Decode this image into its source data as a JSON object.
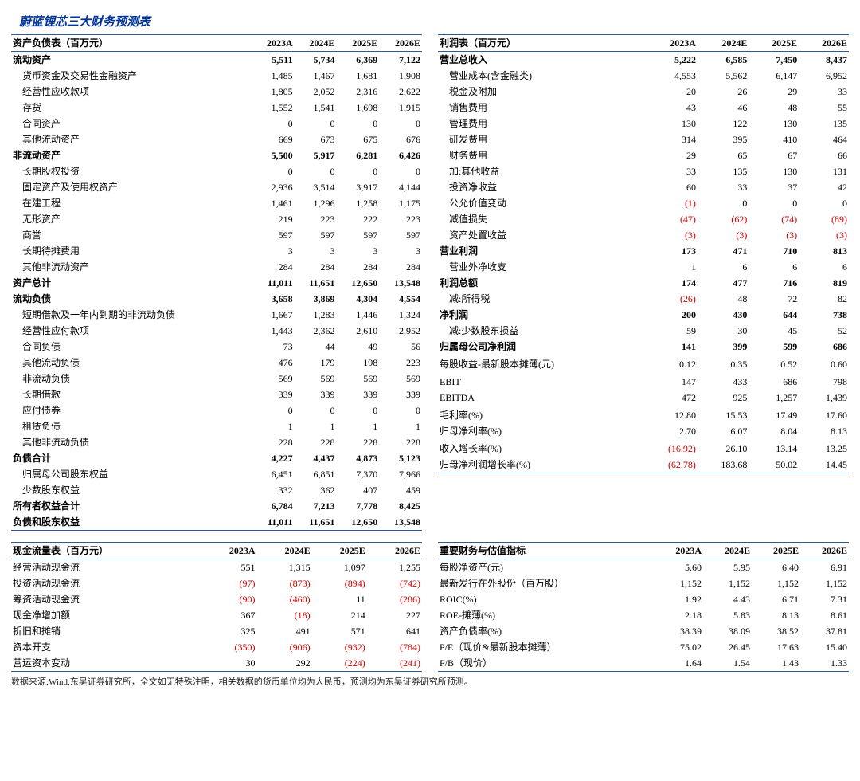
{
  "title": "蔚蓝锂芯三大财务预测表",
  "footnote": "数据来源:Wind,东吴证券研究所，全文如无特殊注明，相关数据的货币单位均为人民币，预测均为东吴证券研究所预测。",
  "periods": [
    "2023A",
    "2024E",
    "2025E",
    "2026E"
  ],
  "colors": {
    "title": "#003399",
    "rule": "#2a5a9a",
    "negative": "#d40000"
  },
  "balance_sheet": {
    "header": "资产负债表（百万元）",
    "rows": [
      {
        "label": "流动资产",
        "bold": true,
        "v": [
          "5,511",
          "5,734",
          "6,369",
          "7,122"
        ]
      },
      {
        "label": "货币资金及交易性金融资产",
        "indent": true,
        "v": [
          "1,485",
          "1,467",
          "1,681",
          "1,908"
        ]
      },
      {
        "label": "经营性应收款项",
        "indent": true,
        "v": [
          "1,805",
          "2,052",
          "2,316",
          "2,622"
        ]
      },
      {
        "label": "存货",
        "indent": true,
        "v": [
          "1,552",
          "1,541",
          "1,698",
          "1,915"
        ]
      },
      {
        "label": "合同资产",
        "indent": true,
        "v": [
          "0",
          "0",
          "0",
          "0"
        ]
      },
      {
        "label": "其他流动资产",
        "indent": true,
        "v": [
          "669",
          "673",
          "675",
          "676"
        ]
      },
      {
        "label": "非流动资产",
        "bold": true,
        "v": [
          "5,500",
          "5,917",
          "6,281",
          "6,426"
        ]
      },
      {
        "label": "长期股权投资",
        "indent": true,
        "v": [
          "0",
          "0",
          "0",
          "0"
        ]
      },
      {
        "label": "固定资产及使用权资产",
        "indent": true,
        "v": [
          "2,936",
          "3,514",
          "3,917",
          "4,144"
        ]
      },
      {
        "label": "在建工程",
        "indent": true,
        "v": [
          "1,461",
          "1,296",
          "1,258",
          "1,175"
        ]
      },
      {
        "label": "无形资产",
        "indent": true,
        "v": [
          "219",
          "223",
          "222",
          "223"
        ]
      },
      {
        "label": "商誉",
        "indent": true,
        "v": [
          "597",
          "597",
          "597",
          "597"
        ]
      },
      {
        "label": "长期待摊费用",
        "indent": true,
        "v": [
          "3",
          "3",
          "3",
          "3"
        ]
      },
      {
        "label": "其他非流动资产",
        "indent": true,
        "v": [
          "284",
          "284",
          "284",
          "284"
        ]
      },
      {
        "label": "资产总计",
        "bold": true,
        "v": [
          "11,011",
          "11,651",
          "12,650",
          "13,548"
        ]
      },
      {
        "label": "流动负债",
        "bold": true,
        "v": [
          "3,658",
          "3,869",
          "4,304",
          "4,554"
        ]
      },
      {
        "label": "短期借款及一年内到期的非流动负债",
        "indent": true,
        "v": [
          "1,667",
          "1,283",
          "1,446",
          "1,324"
        ]
      },
      {
        "label": "经营性应付款项",
        "indent": true,
        "v": [
          "1,443",
          "2,362",
          "2,610",
          "2,952"
        ]
      },
      {
        "label": "合同负债",
        "indent": true,
        "v": [
          "73",
          "44",
          "49",
          "56"
        ]
      },
      {
        "label": "其他流动负债",
        "indent": true,
        "v": [
          "476",
          "179",
          "198",
          "223"
        ]
      },
      {
        "label": "非流动负债",
        "indent": true,
        "v": [
          "569",
          "569",
          "569",
          "569"
        ]
      },
      {
        "label": "长期借款",
        "indent": true,
        "v": [
          "339",
          "339",
          "339",
          "339"
        ]
      },
      {
        "label": "应付债券",
        "indent": true,
        "v": [
          "0",
          "0",
          "0",
          "0"
        ]
      },
      {
        "label": "租赁负债",
        "indent": true,
        "v": [
          "1",
          "1",
          "1",
          "1"
        ]
      },
      {
        "label": "其他非流动负债",
        "indent": true,
        "v": [
          "228",
          "228",
          "228",
          "228"
        ]
      },
      {
        "label": "负债合计",
        "bold": true,
        "v": [
          "4,227",
          "4,437",
          "4,873",
          "5,123"
        ]
      },
      {
        "label": "归属母公司股东权益",
        "indent": true,
        "v": [
          "6,451",
          "6,851",
          "7,370",
          "7,966"
        ]
      },
      {
        "label": "少数股东权益",
        "indent": true,
        "v": [
          "332",
          "362",
          "407",
          "459"
        ]
      },
      {
        "label": "所有者权益合计",
        "bold": true,
        "v": [
          "6,784",
          "7,213",
          "7,778",
          "8,425"
        ]
      },
      {
        "label": "负债和股东权益",
        "bold": true,
        "v": [
          "11,011",
          "11,651",
          "12,650",
          "13,548"
        ],
        "last": true
      }
    ]
  },
  "income_statement": {
    "header": "利润表（百万元）",
    "rows": [
      {
        "label": "营业总收入",
        "bold": true,
        "v": [
          "5,222",
          "6,585",
          "7,450",
          "8,437"
        ]
      },
      {
        "label": "营业成本(含金融类)",
        "indent": true,
        "v": [
          "4,553",
          "5,562",
          "6,147",
          "6,952"
        ]
      },
      {
        "label": "税金及附加",
        "indent": true,
        "v": [
          "20",
          "26",
          "29",
          "33"
        ]
      },
      {
        "label": "销售费用",
        "indent": true,
        "v": [
          "43",
          "46",
          "48",
          "55"
        ]
      },
      {
        "label": "管理费用",
        "indent": true,
        "v": [
          "130",
          "122",
          "130",
          "135"
        ]
      },
      {
        "label": "研发费用",
        "indent": true,
        "v": [
          "314",
          "395",
          "410",
          "464"
        ]
      },
      {
        "label": "财务费用",
        "indent": true,
        "v": [
          "29",
          "65",
          "67",
          "66"
        ]
      },
      {
        "label": "加:其他收益",
        "indent": true,
        "v": [
          "33",
          "135",
          "130",
          "131"
        ]
      },
      {
        "label": "投资净收益",
        "indent": true,
        "v": [
          "60",
          "33",
          "37",
          "42"
        ]
      },
      {
        "label": "公允价值变动",
        "indent": true,
        "v": [
          "(1)",
          "0",
          "0",
          "0"
        ],
        "neg": [
          true,
          false,
          false,
          false
        ]
      },
      {
        "label": "减值损失",
        "indent": true,
        "v": [
          "(47)",
          "(62)",
          "(74)",
          "(89)"
        ],
        "neg": [
          true,
          true,
          true,
          true
        ]
      },
      {
        "label": "资产处置收益",
        "indent": true,
        "v": [
          "(3)",
          "(3)",
          "(3)",
          "(3)"
        ],
        "neg": [
          true,
          true,
          true,
          true
        ]
      },
      {
        "label": "营业利润",
        "bold": true,
        "v": [
          "173",
          "471",
          "710",
          "813"
        ]
      },
      {
        "label": "营业外净收支",
        "indent": true,
        "v": [
          "1",
          "6",
          "6",
          "6"
        ]
      },
      {
        "label": "利润总额",
        "bold": true,
        "v": [
          "174",
          "477",
          "716",
          "819"
        ]
      },
      {
        "label": "减:所得税",
        "indent": true,
        "v": [
          "(26)",
          "48",
          "72",
          "82"
        ],
        "neg": [
          true,
          false,
          false,
          false
        ]
      },
      {
        "label": "净利润",
        "bold": true,
        "v": [
          "200",
          "430",
          "644",
          "738"
        ]
      },
      {
        "label": "减:少数股东损益",
        "indent": true,
        "v": [
          "59",
          "30",
          "45",
          "52"
        ]
      },
      {
        "label": "归属母公司净利润",
        "bold": true,
        "v": [
          "141",
          "399",
          "599",
          "686"
        ]
      },
      {
        "label": "",
        "v": [
          "",
          "",
          "",
          ""
        ]
      },
      {
        "label": "每股收益-最新股本摊薄(元)",
        "v": [
          "0.12",
          "0.35",
          "0.52",
          "0.60"
        ]
      },
      {
        "label": "",
        "v": [
          "",
          "",
          "",
          ""
        ]
      },
      {
        "label": "EBIT",
        "v": [
          "147",
          "433",
          "686",
          "798"
        ]
      },
      {
        "label": "EBITDA",
        "v": [
          "472",
          "925",
          "1,257",
          "1,439"
        ]
      },
      {
        "label": "",
        "v": [
          "",
          "",
          "",
          ""
        ]
      },
      {
        "label": "毛利率(%)",
        "v": [
          "12.80",
          "15.53",
          "17.49",
          "17.60"
        ]
      },
      {
        "label": "归母净利率(%)",
        "v": [
          "2.70",
          "6.07",
          "8.04",
          "8.13"
        ]
      },
      {
        "label": "",
        "v": [
          "",
          "",
          "",
          ""
        ]
      },
      {
        "label": "收入增长率(%)",
        "v": [
          "(16.92)",
          "26.10",
          "13.14",
          "13.25"
        ],
        "neg": [
          true,
          false,
          false,
          false
        ]
      },
      {
        "label": "归母净利润增长率(%)",
        "v": [
          "(62.78)",
          "183.68",
          "50.02",
          "14.45"
        ],
        "neg": [
          true,
          false,
          false,
          false
        ],
        "last": true
      }
    ]
  },
  "cash_flow": {
    "header": "现金流量表（百万元）",
    "rows": [
      {
        "label": "经营活动现金流",
        "v": [
          "551",
          "1,315",
          "1,097",
          "1,255"
        ]
      },
      {
        "label": "投资活动现金流",
        "v": [
          "(97)",
          "(873)",
          "(894)",
          "(742)"
        ],
        "neg": [
          true,
          true,
          true,
          true
        ]
      },
      {
        "label": "筹资活动现金流",
        "v": [
          "(90)",
          "(460)",
          "11",
          "(286)"
        ],
        "neg": [
          true,
          true,
          false,
          true
        ]
      },
      {
        "label": "现金净增加额",
        "v": [
          "367",
          "(18)",
          "214",
          "227"
        ],
        "neg": [
          false,
          true,
          false,
          false
        ]
      },
      {
        "label": "折旧和摊销",
        "v": [
          "325",
          "491",
          "571",
          "641"
        ]
      },
      {
        "label": "资本开支",
        "v": [
          "(350)",
          "(906)",
          "(932)",
          "(784)"
        ],
        "neg": [
          true,
          true,
          true,
          true
        ]
      },
      {
        "label": "营运资本变动",
        "v": [
          "30",
          "292",
          "(224)",
          "(241)"
        ],
        "neg": [
          false,
          false,
          true,
          true
        ],
        "last": true
      }
    ]
  },
  "valuation": {
    "header": "重要财务与估值指标",
    "rows": [
      {
        "label": "每股净资产(元)",
        "v": [
          "5.60",
          "5.95",
          "6.40",
          "6.91"
        ]
      },
      {
        "label": "最新发行在外股份（百万股）",
        "v": [
          "1,152",
          "1,152",
          "1,152",
          "1,152"
        ]
      },
      {
        "label": "ROIC(%)",
        "v": [
          "1.92",
          "4.43",
          "6.71",
          "7.31"
        ]
      },
      {
        "label": "ROE-摊薄(%)",
        "v": [
          "2.18",
          "5.83",
          "8.13",
          "8.61"
        ]
      },
      {
        "label": "资产负债率(%)",
        "v": [
          "38.39",
          "38.09",
          "38.52",
          "37.81"
        ]
      },
      {
        "label": "P/E（现价&最新股本摊薄）",
        "v": [
          "75.02",
          "26.45",
          "17.63",
          "15.40"
        ]
      },
      {
        "label": "P/B（现价）",
        "v": [
          "1.64",
          "1.54",
          "1.43",
          "1.33"
        ],
        "last": true
      }
    ]
  }
}
